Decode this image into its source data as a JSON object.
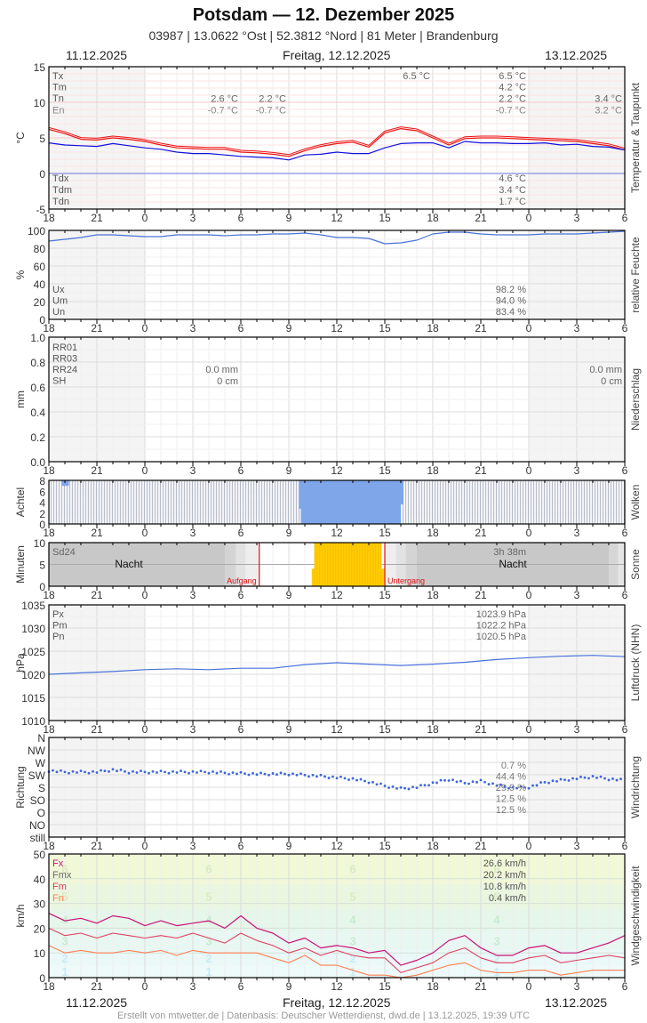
{
  "header": {
    "title": "Potsdam  —  12. Dezember 2025",
    "subtitle": "03987  |  13.0622 °Ost  |  52.3812 °Nord  |  81 Meter  |  Brandenburg",
    "date_left": "11.12.2025",
    "date_center": "Freitag, 12.12.2025",
    "date_right": "13.12.2025"
  },
  "footer": {
    "credit": "Erstellt von mtwetter.de | Datenbasis: Deutscher Wetterdienst, dwd.de | 13.12.2025, 19:39 UTC"
  },
  "x_axis": {
    "ticks": [
      "18",
      "21",
      "0",
      "3",
      "6",
      "9",
      "12",
      "15",
      "18",
      "21",
      "0",
      "3",
      "6"
    ],
    "hours_span": 36
  },
  "colors": {
    "temperature": "#ee1111",
    "dewpoint": "#1111dd",
    "humidity": "#4a72d8",
    "cloud_fill": "#7ea6e8",
    "sun_fill": "#ffcc00",
    "sunrise_sunset_line": "#dd1111",
    "pressure": "#4a72d8",
    "wind_dir_points": "#3a64e0",
    "wind_fx": "#cc1177",
    "wind_fm": "#e04060",
    "wind_fn": "#ff7f50",
    "night_shade": "#f4f4f4"
  },
  "chart_data": [
    {
      "type": "line",
      "id": "temperature",
      "side_label": "Temperatur & Taupunkt",
      "ylabel": "°C",
      "ylim": [
        -5,
        15
      ],
      "yticks": [
        "15",
        "10",
        "5",
        "0",
        "-5"
      ],
      "legend": [
        "Tx",
        "Tm",
        "Tn",
        "En",
        "Tdx",
        "Tdm",
        "Tdn"
      ],
      "annotations": {
        "day1": {
          "Tn": "2.6 °C",
          "En": "-0.7 °C"
        },
        "day1b": {
          "Tn": "2.2 °C",
          "En": "-0.7 °C"
        },
        "day2_max_marker": "6.5 °C",
        "day2": {
          "Tx": "6.5 °C",
          "Tm": "4.2 °C",
          "Tn": "2.2 °C",
          "En": "-0.7 °C",
          "Tdx": "4.6 °C",
          "Tdm": "3.4 °C",
          "Tdn": "1.7 °C"
        },
        "day3": {
          "Tn": "3.4 °C",
          "En": "3.2 °C"
        }
      },
      "x": [
        0,
        1,
        2,
        3,
        4,
        5,
        6,
        7,
        8,
        9,
        10,
        11,
        12,
        13,
        14,
        15,
        16,
        17,
        18,
        19,
        20,
        21,
        22,
        23,
        24,
        25,
        26,
        27,
        28,
        29,
        30,
        31,
        32,
        33,
        34,
        35,
        36
      ],
      "series": [
        {
          "name": "Temperatur",
          "values": [
            6.2,
            5.6,
            4.8,
            4.7,
            5.0,
            4.8,
            4.5,
            4.0,
            3.6,
            3.5,
            3.4,
            3.4,
            3.0,
            2.9,
            2.7,
            2.4,
            3.2,
            3.8,
            4.2,
            4.4,
            3.7,
            5.7,
            6.3,
            6.0,
            5.0,
            4.0,
            4.9,
            5.0,
            5.0,
            4.9,
            4.8,
            4.7,
            4.6,
            4.5,
            4.2,
            3.9,
            3.3
          ]
        },
        {
          "name": "Taupunkt",
          "values": [
            4.3,
            4.0,
            3.9,
            3.8,
            4.2,
            3.9,
            3.6,
            3.4,
            3.0,
            2.8,
            2.8,
            2.6,
            2.4,
            2.3,
            2.2,
            1.9,
            2.6,
            2.7,
            3.0,
            2.8,
            2.8,
            3.6,
            4.2,
            4.3,
            4.3,
            3.6,
            4.5,
            4.3,
            4.3,
            4.2,
            4.2,
            4.3,
            4.0,
            4.1,
            3.8,
            3.7,
            3.3
          ]
        }
      ]
    },
    {
      "type": "line",
      "id": "humidity",
      "side_label": "relative Feuchte",
      "ylabel": "%",
      "ylim": [
        0,
        100
      ],
      "yticks": [
        "100",
        "80",
        "60",
        "40",
        "20",
        "0"
      ],
      "legend": [
        "Ux",
        "Um",
        "Un"
      ],
      "annotations": {
        "Ux": "98.2 %",
        "Um": "94.0 %",
        "Un": "83.4 %"
      },
      "x": [
        0,
        1,
        2,
        3,
        4,
        5,
        6,
        7,
        8,
        9,
        10,
        11,
        12,
        13,
        14,
        15,
        16,
        17,
        18,
        19,
        20,
        21,
        22,
        23,
        24,
        25,
        26,
        27,
        28,
        29,
        30,
        31,
        32,
        33,
        34,
        35,
        36
      ],
      "series": [
        {
          "name": "rel. Feuchte",
          "values": [
            88,
            90,
            92,
            95,
            95,
            94,
            93,
            93,
            95,
            95,
            95,
            94,
            95,
            95,
            96,
            96,
            97,
            95,
            92,
            92,
            91,
            85,
            86,
            89,
            96,
            98,
            98,
            96,
            95,
            95,
            95,
            96,
            96,
            96,
            97,
            98,
            99
          ]
        }
      ]
    },
    {
      "type": "bar",
      "id": "precipitation",
      "side_label": "Niederschlag",
      "ylabel": "mm",
      "ylim": [
        0,
        1.0
      ],
      "yticks": [
        "1.0",
        "0.8",
        "0.6",
        "0.4",
        "0.2",
        "0.0"
      ],
      "legend": [
        "RR01",
        "RR03",
        "RR24",
        "SH"
      ],
      "annotations": {
        "day1": {
          "RR24": "0.0 mm",
          "SH": "0 cm"
        },
        "day3": {
          "RR24": "0.0 mm",
          "SH": "0 cm"
        }
      },
      "values": []
    },
    {
      "type": "bar",
      "id": "clouds",
      "side_label": "Wolken",
      "ylabel": "Achtel",
      "ylim": [
        0,
        8
      ],
      "yticks": [
        "8",
        "6",
        "4",
        "2",
        "0"
      ],
      "note": "Bedeckung 8/8 fast durchgehend (grau), Wolkenlücken (blau) ca. 09:45–16:00 Uhr am 12.12. sowie kurz um 19:00 Uhr am 11.12.",
      "clear_segments": [
        {
          "from_h": 0.8,
          "to_h": 1.25,
          "cover_from_top": 1
        },
        {
          "from_h": 15.75,
          "to_h": 22.0,
          "cover_from_top": 8
        }
      ]
    },
    {
      "type": "bar",
      "id": "sunshine",
      "side_label": "Sonne",
      "ylabel": "Minuten",
      "ylim": [
        0,
        10
      ],
      "yticks": [
        "10",
        "5",
        "0"
      ],
      "labels": {
        "total_name": "Sd24",
        "total_value": "3h 38m",
        "night": "Nacht",
        "sunrise": "Aufgang",
        "sunset": "Untergang"
      },
      "sunrise_h": 13.15,
      "sunset_h": 21.0,
      "sun_segment": {
        "from_h": 16.6,
        "to_h": 20.8,
        "minutes": 10
      }
    },
    {
      "type": "line",
      "id": "pressure",
      "side_label": "Luftdruck (NHN)",
      "ylabel": "hPa",
      "ylim": [
        1010,
        1035
      ],
      "yticks": [
        "1035",
        "1030",
        "1025",
        "1020",
        "1015",
        "1010"
      ],
      "legend": [
        "Px",
        "Pm",
        "Pn"
      ],
      "annotations": {
        "Px": "1023.9 hPa",
        "Pm": "1022.2 hPa",
        "Pn": "1020.5 hPa"
      },
      "x": [
        0,
        2,
        4,
        6,
        8,
        10,
        12,
        14,
        16,
        18,
        20,
        22,
        24,
        26,
        28,
        30,
        32,
        34,
        36
      ],
      "series": [
        {
          "name": "Luftdruck",
          "values": [
            1020.0,
            1020.3,
            1020.6,
            1021.0,
            1021.2,
            1021.0,
            1021.3,
            1021.3,
            1022.1,
            1022.5,
            1022.2,
            1021.9,
            1022.2,
            1022.6,
            1023.2,
            1023.6,
            1023.9,
            1024.1,
            1023.8
          ]
        }
      ]
    },
    {
      "type": "scatter",
      "id": "wind_direction",
      "side_label": "Windrichtung",
      "ylabel": "Richtung",
      "yticks": [
        "N",
        "NW",
        "W",
        "SW",
        "S",
        "SO",
        "O",
        "NO",
        "still"
      ],
      "annotations": [
        "0.7 %",
        "44.4 %",
        "29.9 %",
        "12.5 %",
        "12.5 %"
      ],
      "x": [
        0,
        1,
        2,
        3,
        4,
        5,
        6,
        7,
        8,
        9,
        10,
        11,
        12,
        13,
        14,
        15,
        16,
        17,
        18,
        19,
        20,
        21,
        22,
        23,
        24,
        25,
        26,
        27,
        28,
        29,
        30,
        31,
        32,
        33,
        34,
        35,
        36
      ],
      "series": [
        {
          "name": "Richtung (Grad)",
          "values": [
            240,
            235,
            235,
            235,
            243,
            235,
            235,
            235,
            235,
            235,
            235,
            232,
            230,
            228,
            228,
            228,
            224,
            220,
            215,
            210,
            200,
            185,
            175,
            180,
            195,
            208,
            195,
            202,
            188,
            178,
            180,
            198,
            205,
            212,
            218,
            210,
            205
          ]
        }
      ]
    },
    {
      "type": "line",
      "id": "wind_speed",
      "side_label": "Windgeschwindigkeit",
      "ylabel": "km/h",
      "ylim": [
        0,
        50
      ],
      "yticks": [
        "50",
        "40",
        "30",
        "20",
        "10",
        "0"
      ],
      "legend": [
        "Fx",
        "Fmx",
        "Fm",
        "Fn"
      ],
      "annotations": {
        "Fx": "26.6 km/h",
        "Fmx": "20.2 km/h",
        "Fm": "10.8 km/h",
        "Fn": "0.4 km/h"
      },
      "beaufort_labels": [
        "1",
        "2",
        "3",
        "4",
        "5",
        "6"
      ],
      "x": [
        0,
        1,
        2,
        3,
        4,
        5,
        6,
        7,
        8,
        9,
        10,
        11,
        12,
        13,
        14,
        15,
        16,
        17,
        18,
        19,
        20,
        21,
        22,
        23,
        24,
        25,
        26,
        27,
        28,
        29,
        30,
        31,
        32,
        33,
        34,
        35,
        36
      ],
      "series": [
        {
          "name": "Fx",
          "values": [
            26,
            23,
            24,
            22,
            25,
            24,
            21,
            23,
            21,
            22,
            23,
            20,
            25,
            20,
            18,
            14,
            16,
            12,
            13,
            12,
            10,
            11,
            5,
            7,
            10,
            15,
            17,
            12,
            9,
            9,
            12,
            13,
            10,
            10,
            12,
            14,
            17
          ]
        },
        {
          "name": "Fm",
          "values": [
            20,
            17,
            18,
            16,
            18,
            17,
            16,
            17,
            16,
            18,
            16,
            14,
            18,
            15,
            13,
            10,
            12,
            9,
            11,
            9,
            8,
            8,
            2,
            4,
            6,
            10,
            12,
            8,
            6,
            6,
            8,
            9,
            6,
            7,
            8,
            9,
            8
          ]
        },
        {
          "name": "Fn",
          "values": [
            13,
            10,
            11,
            10,
            10,
            11,
            10,
            11,
            9,
            11,
            10,
            10,
            10,
            10,
            8,
            6,
            9,
            5,
            5,
            3,
            1,
            1,
            0,
            1,
            3,
            5,
            6,
            3,
            2,
            2,
            3,
            3,
            1,
            2,
            3,
            3,
            3
          ]
        }
      ]
    }
  ]
}
